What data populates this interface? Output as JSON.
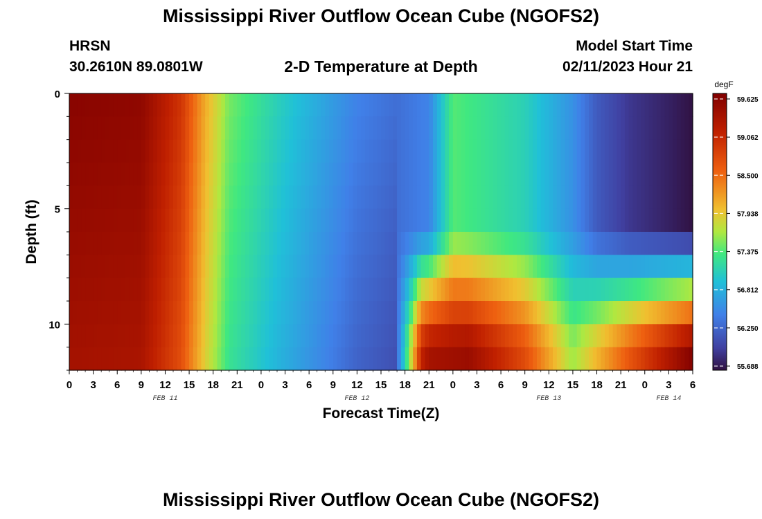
{
  "title": "Mississippi River Outflow Ocean Cube (NGOFS2)",
  "station": {
    "name": "HRSN",
    "coords": "30.2610N  89.0801W"
  },
  "subtitle": "2-D Temperature at Depth",
  "model_start": {
    "label": "Model Start Time",
    "value": "02/11/2023 Hour 21"
  },
  "footer_title": "Mississippi River Outflow Ocean Cube (NGOFS2)",
  "chart_data": {
    "type": "heatmap",
    "xlabel": "Forecast Time(Z)",
    "ylabel": "Depth (ft)",
    "x_hours": [
      0,
      78
    ],
    "xtick_labels": [
      "0",
      "3",
      "6",
      "9",
      "12",
      "15",
      "18",
      "21",
      "0",
      "3",
      "6",
      "9",
      "12",
      "15",
      "18",
      "21",
      "0",
      "3",
      "6",
      "9",
      "12",
      "15",
      "18",
      "21",
      "0",
      "3",
      "6"
    ],
    "date_labels": [
      {
        "text": "FEB 11",
        "hour": 12
      },
      {
        "text": "FEB 12",
        "hour": 36
      },
      {
        "text": "FEB 13",
        "hour": 60
      },
      {
        "text": "FEB 14",
        "hour": 75
      }
    ],
    "ylim": [
      0,
      12
    ],
    "yticks": [
      0,
      5,
      10
    ],
    "colorbar": {
      "unit": "degF",
      "min": 55.688,
      "max": 59.625,
      "tick_labels": [
        "59.625",
        "59.062",
        "58.500",
        "57.938",
        "57.375",
        "56.812",
        "56.250",
        "55.688"
      ]
    },
    "rows_depth_ft": [
      0.5,
      1.5,
      2.5,
      3.5,
      4.5,
      5.5,
      6.5,
      7.5,
      8.5,
      9.5,
      10.5,
      11.5
    ],
    "time_profile": {
      "description_hours": [
        0,
        9,
        14,
        17,
        20,
        26,
        36,
        41,
        45,
        48,
        57,
        63,
        66,
        70,
        75,
        78
      ],
      "surface_degF": [
        59.55,
        59.5,
        58.9,
        58.1,
        57.5,
        57.1,
        56.5,
        56.35,
        56.5,
        57.4,
        57.1,
        56.6,
        56.2,
        55.95,
        55.8,
        55.7
      ]
    },
    "near_bottom_degF_after_hour_41": [
      58.3,
      59.3,
      59.4,
      58.7,
      57.6,
      58.6,
      59.6
    ]
  }
}
